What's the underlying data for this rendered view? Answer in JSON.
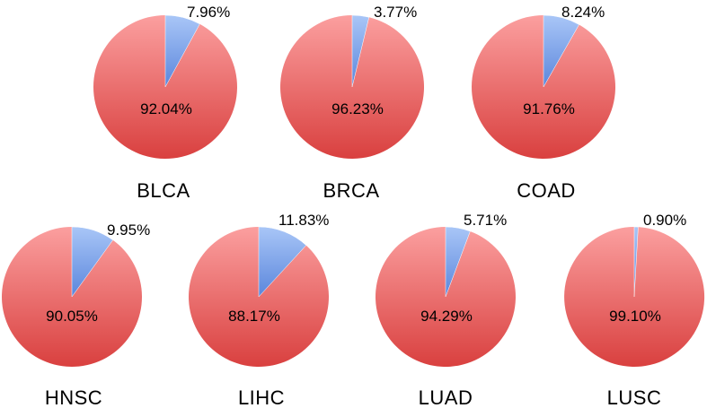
{
  "chart_data": {
    "type": "pie",
    "title": "",
    "slice_names": [
      "minor",
      "major"
    ],
    "colors": {
      "minor_light": "#a9c6f7",
      "minor_dark": "#5b86dc",
      "major_light": "#fb9f9f",
      "major_dark": "#d9403f"
    },
    "charts": [
      {
        "category": "BLCA",
        "minor": 7.96,
        "major": 92.04,
        "minor_label": "7.96%",
        "major_label": "92.04%"
      },
      {
        "category": "BRCA",
        "minor": 3.77,
        "major": 96.23,
        "minor_label": "3.77%",
        "major_label": "96.23%"
      },
      {
        "category": "COAD",
        "minor": 8.24,
        "major": 91.76,
        "minor_label": "8.24%",
        "major_label": "91.76%"
      },
      {
        "category": "HNSC",
        "minor": 9.95,
        "major": 90.05,
        "minor_label": "9.95%",
        "major_label": "90.05%"
      },
      {
        "category": "LIHC",
        "minor": 11.83,
        "major": 88.17,
        "minor_label": "11.83%",
        "major_label": "88.17%"
      },
      {
        "category": "LUAD",
        "minor": 5.71,
        "major": 94.29,
        "minor_label": "5.71%",
        "major_label": "94.29%"
      },
      {
        "category": "LUSC",
        "minor": 0.9,
        "major": 99.1,
        "minor_label": "0.90%",
        "major_label": "99.10%"
      }
    ]
  }
}
